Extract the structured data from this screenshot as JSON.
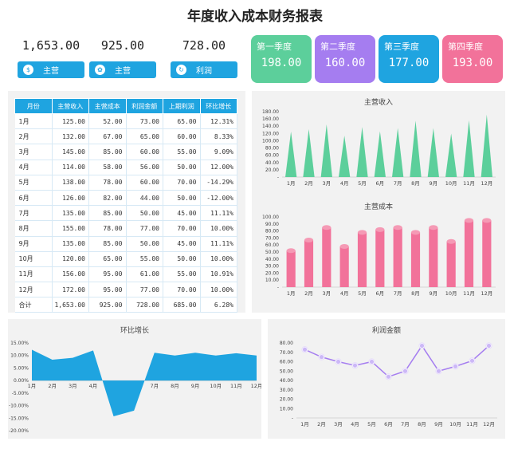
{
  "page": {
    "title": "年度收入成本财务报表"
  },
  "kpis": [
    {
      "value": "1,653.00",
      "label": "主营",
      "icon": "coin-icon"
    },
    {
      "value": "925.00",
      "label": "主营",
      "icon": "leaf-icon"
    },
    {
      "value": "728.00",
      "label": "利润",
      "icon": "cycle-icon"
    }
  ],
  "quarters": [
    {
      "label": "第一季度",
      "value": "198.00",
      "color": "#5ccf9b"
    },
    {
      "label": "第二季度",
      "value": "160.00",
      "color": "#a57df0"
    },
    {
      "label": "第三季度",
      "value": "177.00",
      "color": "#1fa4e0"
    },
    {
      "label": "第四季度",
      "value": "193.00",
      "color": "#f2729a"
    }
  ],
  "table": {
    "headers": [
      "月份",
      "主营收入",
      "主营成本",
      "利润金额",
      "上期利润",
      "环比增长"
    ],
    "rows": [
      [
        "1月",
        "125.00",
        "52.00",
        "73.00",
        "65.00",
        "12.31%"
      ],
      [
        "2月",
        "132.00",
        "67.00",
        "65.00",
        "60.00",
        "8.33%"
      ],
      [
        "3月",
        "145.00",
        "85.00",
        "60.00",
        "55.00",
        "9.09%"
      ],
      [
        "4月",
        "114.00",
        "58.00",
        "56.00",
        "50.00",
        "12.00%"
      ],
      [
        "5月",
        "138.00",
        "78.00",
        "60.00",
        "70.00",
        "-14.29%"
      ],
      [
        "6月",
        "126.00",
        "82.00",
        "44.00",
        "50.00",
        "-12.00%"
      ],
      [
        "7月",
        "135.00",
        "85.00",
        "50.00",
        "45.00",
        "11.11%"
      ],
      [
        "8月",
        "155.00",
        "78.00",
        "77.00",
        "70.00",
        "10.00%"
      ],
      [
        "9月",
        "135.00",
        "85.00",
        "50.00",
        "45.00",
        "11.11%"
      ],
      [
        "10月",
        "120.00",
        "65.00",
        "55.00",
        "50.00",
        "10.00%"
      ],
      [
        "11月",
        "156.00",
        "95.00",
        "61.00",
        "55.00",
        "10.91%"
      ],
      [
        "12月",
        "172.00",
        "95.00",
        "77.00",
        "70.00",
        "10.00%"
      ],
      [
        "合计",
        "1,653.00",
        "925.00",
        "728.00",
        "685.00",
        "6.28%"
      ]
    ]
  },
  "chart_data": [
    {
      "type": "area",
      "title": "主营收入",
      "categories": [
        "1月",
        "2月",
        "3月",
        "4月",
        "5月",
        "6月",
        "7月",
        "8月",
        "9月",
        "10月",
        "11月",
        "12月"
      ],
      "values": [
        125,
        132,
        145,
        114,
        138,
        126,
        135,
        155,
        135,
        120,
        156,
        172
      ],
      "ylim": [
        0,
        180
      ],
      "yticks": [
        "-",
        "20.00",
        "40.00",
        "60.00",
        "80.00",
        "100.00",
        "120.00",
        "140.00",
        "160.00",
        "180.00"
      ],
      "color": "#5ccf9b"
    },
    {
      "type": "bar",
      "title": "主营成本",
      "categories": [
        "1月",
        "2月",
        "3月",
        "4月",
        "5月",
        "6月",
        "7月",
        "8月",
        "9月",
        "10月",
        "11月",
        "12月"
      ],
      "values": [
        52,
        67,
        85,
        58,
        78,
        82,
        85,
        78,
        85,
        65,
        95,
        95
      ],
      "ylim": [
        0,
        100
      ],
      "yticks": [
        "-",
        "10.00",
        "20.00",
        "30.00",
        "40.00",
        "50.00",
        "60.00",
        "70.00",
        "80.00",
        "90.00",
        "100.00"
      ],
      "color": "#f2729a"
    },
    {
      "type": "area",
      "title": "环比增长",
      "categories": [
        "1月",
        "2月",
        "3月",
        "4月",
        "5月",
        "6月",
        "7月",
        "8月",
        "9月",
        "10月",
        "11月",
        "12月"
      ],
      "values": [
        12.31,
        8.33,
        9.09,
        12.0,
        -14.29,
        -12.0,
        11.11,
        10.0,
        11.11,
        10.0,
        10.91,
        10.0
      ],
      "ylim": [
        -20,
        15
      ],
      "yticks": [
        "-20.00%",
        "-15.00%",
        "-10.00%",
        "-5.00%",
        "0.00%",
        "5.00%",
        "10.00%",
        "15.00%"
      ],
      "color": "#1fa4e0"
    },
    {
      "type": "line",
      "title": "利润金额",
      "categories": [
        "1月",
        "2月",
        "3月",
        "4月",
        "5月",
        "6月",
        "7月",
        "8月",
        "9月",
        "10月",
        "11月",
        "12月"
      ],
      "values": [
        73,
        65,
        60,
        56,
        60,
        44,
        50,
        77,
        50,
        55,
        61,
        77
      ],
      "ylim": [
        0,
        80
      ],
      "yticks": [
        "-",
        "10.00",
        "20.00",
        "30.00",
        "40.00",
        "50.00",
        "60.00",
        "70.00",
        "80.00"
      ],
      "color": "#a57df0"
    }
  ]
}
